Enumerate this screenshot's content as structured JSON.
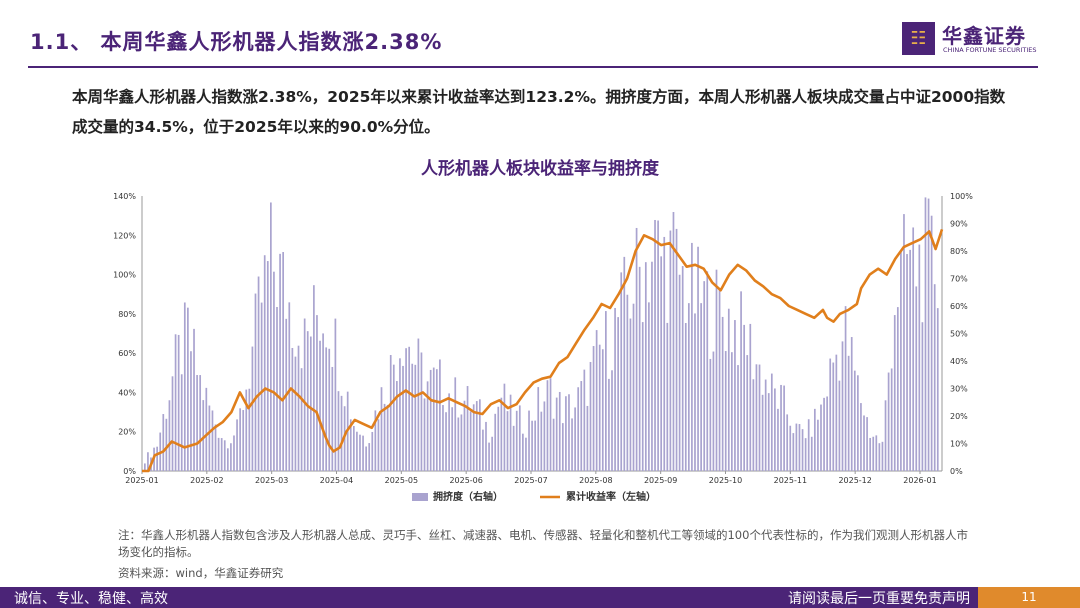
{
  "header": {
    "title": "1.1、  本周华鑫人形机器人指数涨2.38%",
    "logo_name": "华鑫证券",
    "logo_sub": "CHINA FORTUNE SECURITIES"
  },
  "summary": "本周华鑫人形机器人指数涨2.38%，2025年以来累计收益率达到123.2%。拥挤度方面，本周人形机器人板块成交量占中证2000指数成交量的34.5%，位于2025年以来的90.0%分位。",
  "chart_title": "人形机器人板块收益率与拥挤度",
  "chart_data": {
    "type": "bar+line",
    "x_ticks": [
      "2025-01",
      "2025-02",
      "2025-03",
      "2025-04",
      "2025-05",
      "2025-06",
      "2025-07",
      "2025-08",
      "2025-09",
      "2025-10",
      "2025-11",
      "2025-12",
      "2026-01"
    ],
    "y_left_ticks": [
      "0%",
      "20%",
      "40%",
      "60%",
      "80%",
      "100%",
      "120%",
      "140%"
    ],
    "y_left_range": [
      0,
      140
    ],
    "y_right_ticks": [
      "0%",
      "10%",
      "20%",
      "30%",
      "40%",
      "50%",
      "60%",
      "70%",
      "80%",
      "90%",
      "100%"
    ],
    "y_right_range": [
      0,
      100
    ],
    "legend_position": "bottom",
    "series": [
      {
        "name": "拥挤度（右轴）",
        "type": "bar",
        "axis": "right",
        "color": "#a9a3cf",
        "anchors": [
          [
            0,
            5
          ],
          [
            4,
            12
          ],
          [
            7,
            30
          ],
          [
            10,
            48
          ],
          [
            14,
            62
          ],
          [
            18,
            40
          ],
          [
            22,
            25
          ],
          [
            26,
            14
          ],
          [
            30,
            18
          ],
          [
            34,
            46
          ],
          [
            38,
            78
          ],
          [
            41,
            96
          ],
          [
            44,
            88
          ],
          [
            48,
            72
          ],
          [
            52,
            58
          ],
          [
            56,
            72
          ],
          [
            60,
            70
          ],
          [
            64,
            46
          ],
          [
            68,
            22
          ],
          [
            72,
            14
          ],
          [
            76,
            30
          ],
          [
            80,
            46
          ],
          [
            84,
            64
          ],
          [
            88,
            50
          ],
          [
            92,
            40
          ],
          [
            96,
            40
          ],
          [
            100,
            34
          ],
          [
            104,
            32
          ],
          [
            108,
            28
          ],
          [
            112,
            18
          ],
          [
            116,
            34
          ],
          [
            120,
            24
          ],
          [
            124,
            22
          ],
          [
            128,
            30
          ],
          [
            132,
            36
          ],
          [
            136,
            28
          ],
          [
            140,
            30
          ],
          [
            144,
            40
          ],
          [
            148,
            54
          ],
          [
            152,
            62
          ],
          [
            156,
            76
          ],
          [
            160,
            88
          ],
          [
            163,
            94
          ],
          [
            166,
            100
          ],
          [
            169,
            96
          ],
          [
            172,
            96
          ],
          [
            175,
            86
          ],
          [
            178,
            80
          ],
          [
            181,
            78
          ],
          [
            184,
            74
          ],
          [
            188,
            72
          ],
          [
            192,
            66
          ],
          [
            196,
            60
          ],
          [
            200,
            46
          ],
          [
            204,
            36
          ],
          [
            208,
            30
          ],
          [
            212,
            18
          ],
          [
            216,
            18
          ],
          [
            220,
            28
          ],
          [
            224,
            50
          ],
          [
            228,
            62
          ],
          [
            232,
            38
          ],
          [
            236,
            18
          ],
          [
            240,
            12
          ],
          [
            244,
            78
          ],
          [
            248,
            96
          ],
          [
            252,
            94
          ],
          [
            255,
            96
          ],
          [
            258,
            92
          ]
        ]
      },
      {
        "name": "累计收益率（左轴）",
        "type": "line",
        "axis": "left",
        "color": "#e07f1c",
        "points": [
          [
            0,
            0
          ],
          [
            3,
            0
          ],
          [
            6,
            8
          ],
          [
            10,
            10
          ],
          [
            14,
            15
          ],
          [
            20,
            12
          ],
          [
            26,
            14
          ],
          [
            30,
            18
          ],
          [
            34,
            22
          ],
          [
            38,
            25
          ],
          [
            42,
            30
          ],
          [
            46,
            40
          ],
          [
            50,
            32
          ],
          [
            54,
            38
          ],
          [
            58,
            42
          ],
          [
            62,
            40
          ],
          [
            66,
            36
          ],
          [
            70,
            42
          ],
          [
            74,
            38
          ],
          [
            78,
            33
          ],
          [
            82,
            30
          ],
          [
            86,
            18
          ],
          [
            88,
            13
          ],
          [
            90,
            10
          ],
          [
            93,
            12
          ],
          [
            96,
            20
          ],
          [
            100,
            26
          ],
          [
            104,
            24
          ],
          [
            108,
            22
          ],
          [
            112,
            30
          ],
          [
            116,
            33
          ],
          [
            120,
            38
          ],
          [
            124,
            41
          ],
          [
            128,
            38
          ],
          [
            132,
            40
          ],
          [
            136,
            36
          ],
          [
            140,
            35
          ],
          [
            144,
            37
          ],
          [
            148,
            35
          ],
          [
            152,
            33
          ],
          [
            156,
            30
          ],
          [
            160,
            29
          ],
          [
            164,
            34
          ],
          [
            168,
            36
          ],
          [
            172,
            32
          ],
          [
            176,
            34
          ],
          [
            180,
            40
          ],
          [
            184,
            45
          ],
          [
            188,
            47
          ],
          [
            192,
            48
          ],
          [
            196,
            55
          ],
          [
            200,
            58
          ],
          [
            204,
            65
          ],
          [
            208,
            72
          ],
          [
            212,
            78
          ],
          [
            216,
            85
          ],
          [
            220,
            83
          ],
          [
            224,
            90
          ],
          [
            228,
            98
          ],
          [
            232,
            112
          ],
          [
            236,
            120
          ],
          [
            240,
            118
          ],
          [
            244,
            115
          ],
          [
            248,
            116
          ],
          [
            252,
            110
          ],
          [
            256,
            104
          ],
          [
            260,
            105
          ],
          [
            264,
            103
          ],
          [
            268,
            96
          ],
          [
            272,
            92
          ],
          [
            276,
            100
          ],
          [
            280,
            105
          ],
          [
            284,
            102
          ],
          [
            288,
            97
          ],
          [
            292,
            94
          ],
          [
            296,
            90
          ],
          [
            300,
            88
          ],
          [
            304,
            84
          ],
          [
            308,
            82
          ],
          [
            312,
            80
          ],
          [
            316,
            78
          ],
          [
            318,
            80
          ],
          [
            320,
            82
          ],
          [
            322,
            78
          ],
          [
            325,
            76
          ],
          [
            328,
            80
          ],
          [
            332,
            82
          ],
          [
            336,
            85
          ],
          [
            338,
            93
          ],
          [
            342,
            100
          ],
          [
            346,
            103
          ],
          [
            350,
            100
          ],
          [
            354,
            108
          ],
          [
            358,
            114
          ],
          [
            362,
            116
          ],
          [
            366,
            118
          ],
          [
            370,
            122
          ],
          [
            373,
            113
          ],
          [
            376,
            123
          ]
        ]
      }
    ]
  },
  "note": "注：华鑫人形机器人指数包含涉及人形机器人总成、灵巧手、丝杠、减速器、电机、传感器、轻量化和整机代工等领域的100个代表性标的，作为我们观测人形机器人市场变化的指标。",
  "source": "资料来源：wind，华鑫证券研究",
  "footer": {
    "left": "诚信、专业、稳健、高效",
    "right": "请阅读最后一页重要免责声明",
    "page": "11"
  }
}
